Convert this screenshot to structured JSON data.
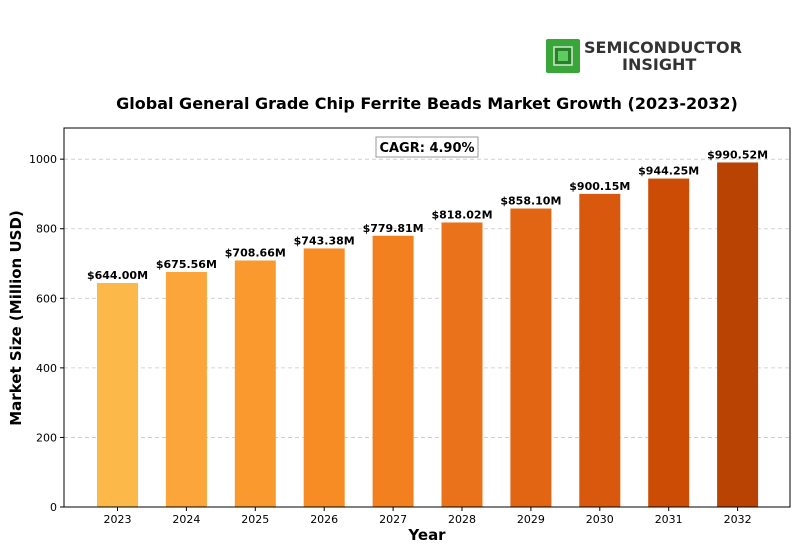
{
  "brand": {
    "line1": "SEMICONDUCTOR",
    "line2": "INSIGHT",
    "icon": "chip-icon",
    "icon_color": "#3aa63a"
  },
  "chart_data": {
    "type": "bar",
    "title": "Global General Grade Chip Ferrite Beads Market Growth (2023-2032)",
    "xlabel": "Year",
    "ylabel": "Market Size (Million USD)",
    "categories": [
      "2023",
      "2024",
      "2025",
      "2026",
      "2027",
      "2028",
      "2029",
      "2030",
      "2031",
      "2032"
    ],
    "values": [
      644.0,
      675.56,
      708.66,
      743.38,
      779.81,
      818.02,
      858.1,
      900.15,
      944.25,
      990.52
    ],
    "data_labels": [
      "$644.00M",
      "$675.56M",
      "$708.66M",
      "$743.38M",
      "$779.81M",
      "$818.02M",
      "$858.10M",
      "$900.15M",
      "$944.25M",
      "$990.52M"
    ],
    "colors": [
      "#fdb84a",
      "#fca53a",
      "#fa9a2e",
      "#f78c25",
      "#f3801f",
      "#ea721a",
      "#e26514",
      "#d8590e",
      "#cc4c05",
      "#b94302"
    ],
    "ylim": [
      0,
      1089.6
    ],
    "yticks": [
      0,
      200,
      400,
      600,
      800,
      1000
    ],
    "grid": "y-dashed",
    "annotation": "CAGR: 4.90%"
  }
}
